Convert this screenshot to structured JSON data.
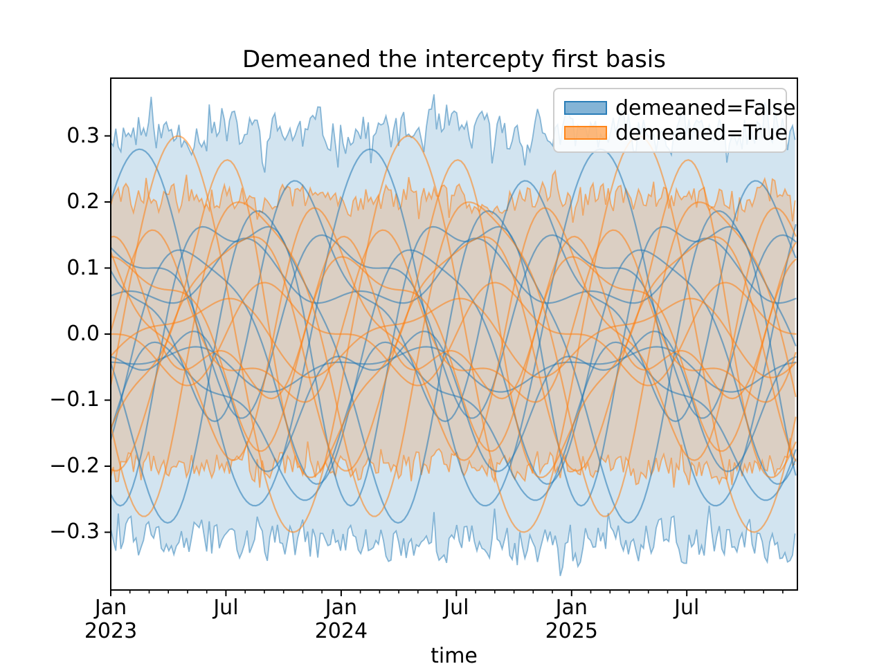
{
  "chart_data": {
    "type": "line",
    "title": "Demeaned the intercepty first basis",
    "xlabel": "time",
    "ylabel": "",
    "x_axis": {
      "min": 0,
      "max": 2.98,
      "unit": "years since Jan 2023",
      "major_ticks": [
        {
          "t": 0.0,
          "month": "Jan",
          "year": "2023"
        },
        {
          "t": 0.5,
          "month": "Jul",
          "year": ""
        },
        {
          "t": 1.0,
          "month": "Jan",
          "year": "2024"
        },
        {
          "t": 1.5,
          "month": "Jul",
          "year": ""
        },
        {
          "t": 2.0,
          "month": "Jan",
          "year": "2025"
        },
        {
          "t": 2.5,
          "month": "Jul",
          "year": ""
        }
      ],
      "minor_tick_every_months": 1
    },
    "y_axis": {
      "min": -0.3875,
      "max": 0.3875,
      "ticks": [
        {
          "v": 0.3,
          "label": "0.3"
        },
        {
          "v": 0.2,
          "label": "0.2"
        },
        {
          "v": 0.1,
          "label": "0.1"
        },
        {
          "v": 0.0,
          "label": "0.0"
        },
        {
          "v": -0.1,
          "label": "−0.1"
        },
        {
          "v": -0.2,
          "label": "−0.2"
        },
        {
          "v": -0.3,
          "label": "−0.3"
        }
      ]
    },
    "legend": {
      "position": "upper right",
      "entries": [
        {
          "label": "demeaned=False",
          "color": "#1f77b4"
        },
        {
          "label": "demeaned=True",
          "color": "#ff7f0e"
        }
      ]
    },
    "bands": [
      {
        "group": "demeaned=False",
        "color": "#1f77b4",
        "upper_base": 0.305,
        "lower_base": -0.315,
        "noise_amplitude": 0.028,
        "seed": 11,
        "fill_alpha": 0.2,
        "edge_alpha": 0.5
      },
      {
        "group": "demeaned=True",
        "color": "#ff7f0e",
        "upper_base": 0.205,
        "lower_base": -0.198,
        "noise_amplitude": 0.02,
        "seed": 29,
        "fill_alpha": 0.2,
        "edge_alpha": 0.55
      }
    ],
    "series": [
      {
        "group": "demeaned=False",
        "color": "#1f77b4",
        "offset": 0.01,
        "annual_amplitude": 0.27,
        "annual_peak_month": 1.5,
        "semiannual_amplitude": 0.0,
        "semiannual_peak_month": 0.0
      },
      {
        "group": "demeaned=False",
        "color": "#1f77b4",
        "offset": -0.02,
        "annual_amplitude": 0.17,
        "annual_peak_month": 4.5,
        "semiannual_amplitude": 0.04,
        "semiannual_peak_month": 2.0
      },
      {
        "group": "demeaned=False",
        "color": "#1f77b4",
        "offset": 0.04,
        "annual_amplitude": 0.12,
        "annual_peak_month": 0.5,
        "semiannual_amplitude": 0.05,
        "semiannual_peak_month": 4.0
      },
      {
        "group": "demeaned=False",
        "color": "#1f77b4",
        "offset": 0.08,
        "annual_amplitude": 0.04,
        "annual_peak_month": 7.0,
        "semiannual_amplitude": 0.025,
        "semiannual_peak_month": 1.0
      },
      {
        "group": "demeaned=False",
        "color": "#1f77b4",
        "offset": -0.05,
        "annual_amplitude": 0.025,
        "annual_peak_month": 3.0,
        "semiannual_amplitude": 0.015,
        "semiannual_peak_month": 5.0
      },
      {
        "group": "demeaned=False",
        "color": "#1f77b4",
        "offset": -0.03,
        "annual_amplitude": 0.22,
        "annual_peak_month": 8.5,
        "semiannual_amplitude": 0.05,
        "semiannual_peak_month": 0.5
      },
      {
        "group": "demeaned=False",
        "color": "#1f77b4",
        "offset": 0.05,
        "annual_amplitude": 0.15,
        "annual_peak_month": 10.5,
        "semiannual_amplitude": 0.06,
        "semiannual_peak_month": 3.0
      },
      {
        "group": "demeaned=False",
        "color": "#1f77b4",
        "offset": -0.12,
        "annual_amplitude": 0.1,
        "annual_peak_month": 3.5,
        "semiannual_amplitude": 0.04,
        "semiannual_peak_month": 7.5
      },
      {
        "group": "demeaned=False",
        "color": "#1f77b4",
        "offset": 0.02,
        "annual_amplitude": 0.2,
        "annual_peak_month": 6.5,
        "semiannual_amplitude": 0.08,
        "semiannual_peak_month": 9.5
      },
      {
        "group": "demeaned=False",
        "color": "#1f77b4",
        "offset": -0.08,
        "annual_amplitude": 0.08,
        "annual_peak_month": 2.5,
        "semiannual_amplitude": 0.05,
        "semiannual_peak_month": 11.0
      },
      {
        "group": "demeaned=True",
        "color": "#ff7f0e",
        "offset": 0.0,
        "annual_amplitude": 0.3,
        "annual_peak_month": 3.5,
        "semiannual_amplitude": 0.0,
        "semiannual_peak_month": 0.0
      },
      {
        "group": "demeaned=True",
        "color": "#ff7f0e",
        "offset": 0.0,
        "annual_amplitude": 0.17,
        "annual_peak_month": 6.5,
        "semiannual_amplitude": 0.04,
        "semiannual_peak_month": 3.0
      },
      {
        "group": "demeaned=True",
        "color": "#ff7f0e",
        "offset": 0.0,
        "annual_amplitude": 0.13,
        "annual_peak_month": 1.5,
        "semiannual_amplitude": 0.05,
        "semiannual_peak_month": 5.0
      },
      {
        "group": "demeaned=True",
        "color": "#ff7f0e",
        "offset": 0.0,
        "annual_amplitude": 0.06,
        "annual_peak_month": 9.0,
        "semiannual_amplitude": 0.03,
        "semiannual_peak_month": 1.5
      },
      {
        "group": "demeaned=True",
        "color": "#ff7f0e",
        "offset": 0.0,
        "annual_amplitude": 0.05,
        "annual_peak_month": 5.0,
        "semiannual_amplitude": 0.02,
        "semiannual_peak_month": 7.0
      },
      {
        "group": "demeaned=True",
        "color": "#ff7f0e",
        "offset": 0.0,
        "annual_amplitude": 0.23,
        "annual_peak_month": 7.5,
        "semiannual_amplitude": 0.05,
        "semiannual_peak_month": 11.0
      },
      {
        "group": "demeaned=True",
        "color": "#ff7f0e",
        "offset": 0.0,
        "annual_amplitude": 0.16,
        "annual_peak_month": 11.5,
        "semiannual_amplitude": 0.06,
        "semiannual_peak_month": 4.0
      },
      {
        "group": "demeaned=True",
        "color": "#ff7f0e",
        "offset": 0.0,
        "annual_amplitude": 0.11,
        "annual_peak_month": 2.5,
        "semiannual_amplitude": 0.05,
        "semiannual_peak_month": 8.0
      },
      {
        "group": "demeaned=True",
        "color": "#ff7f0e",
        "offset": 0.0,
        "annual_amplitude": 0.21,
        "annual_peak_month": 5.5,
        "semiannual_amplitude": 0.07,
        "semiannual_peak_month": 0.5
      },
      {
        "group": "demeaned=True",
        "color": "#ff7f0e",
        "offset": 0.0,
        "annual_amplitude": 0.09,
        "annual_peak_month": 0.5,
        "semiannual_amplitude": 0.06,
        "semiannual_peak_month": 6.0
      }
    ],
    "sampling": {
      "band_step_days": 4,
      "series_step_days": 5
    },
    "line_alpha": 0.55,
    "line_width": 2.2,
    "axis_color": "#000000",
    "grid": false
  }
}
